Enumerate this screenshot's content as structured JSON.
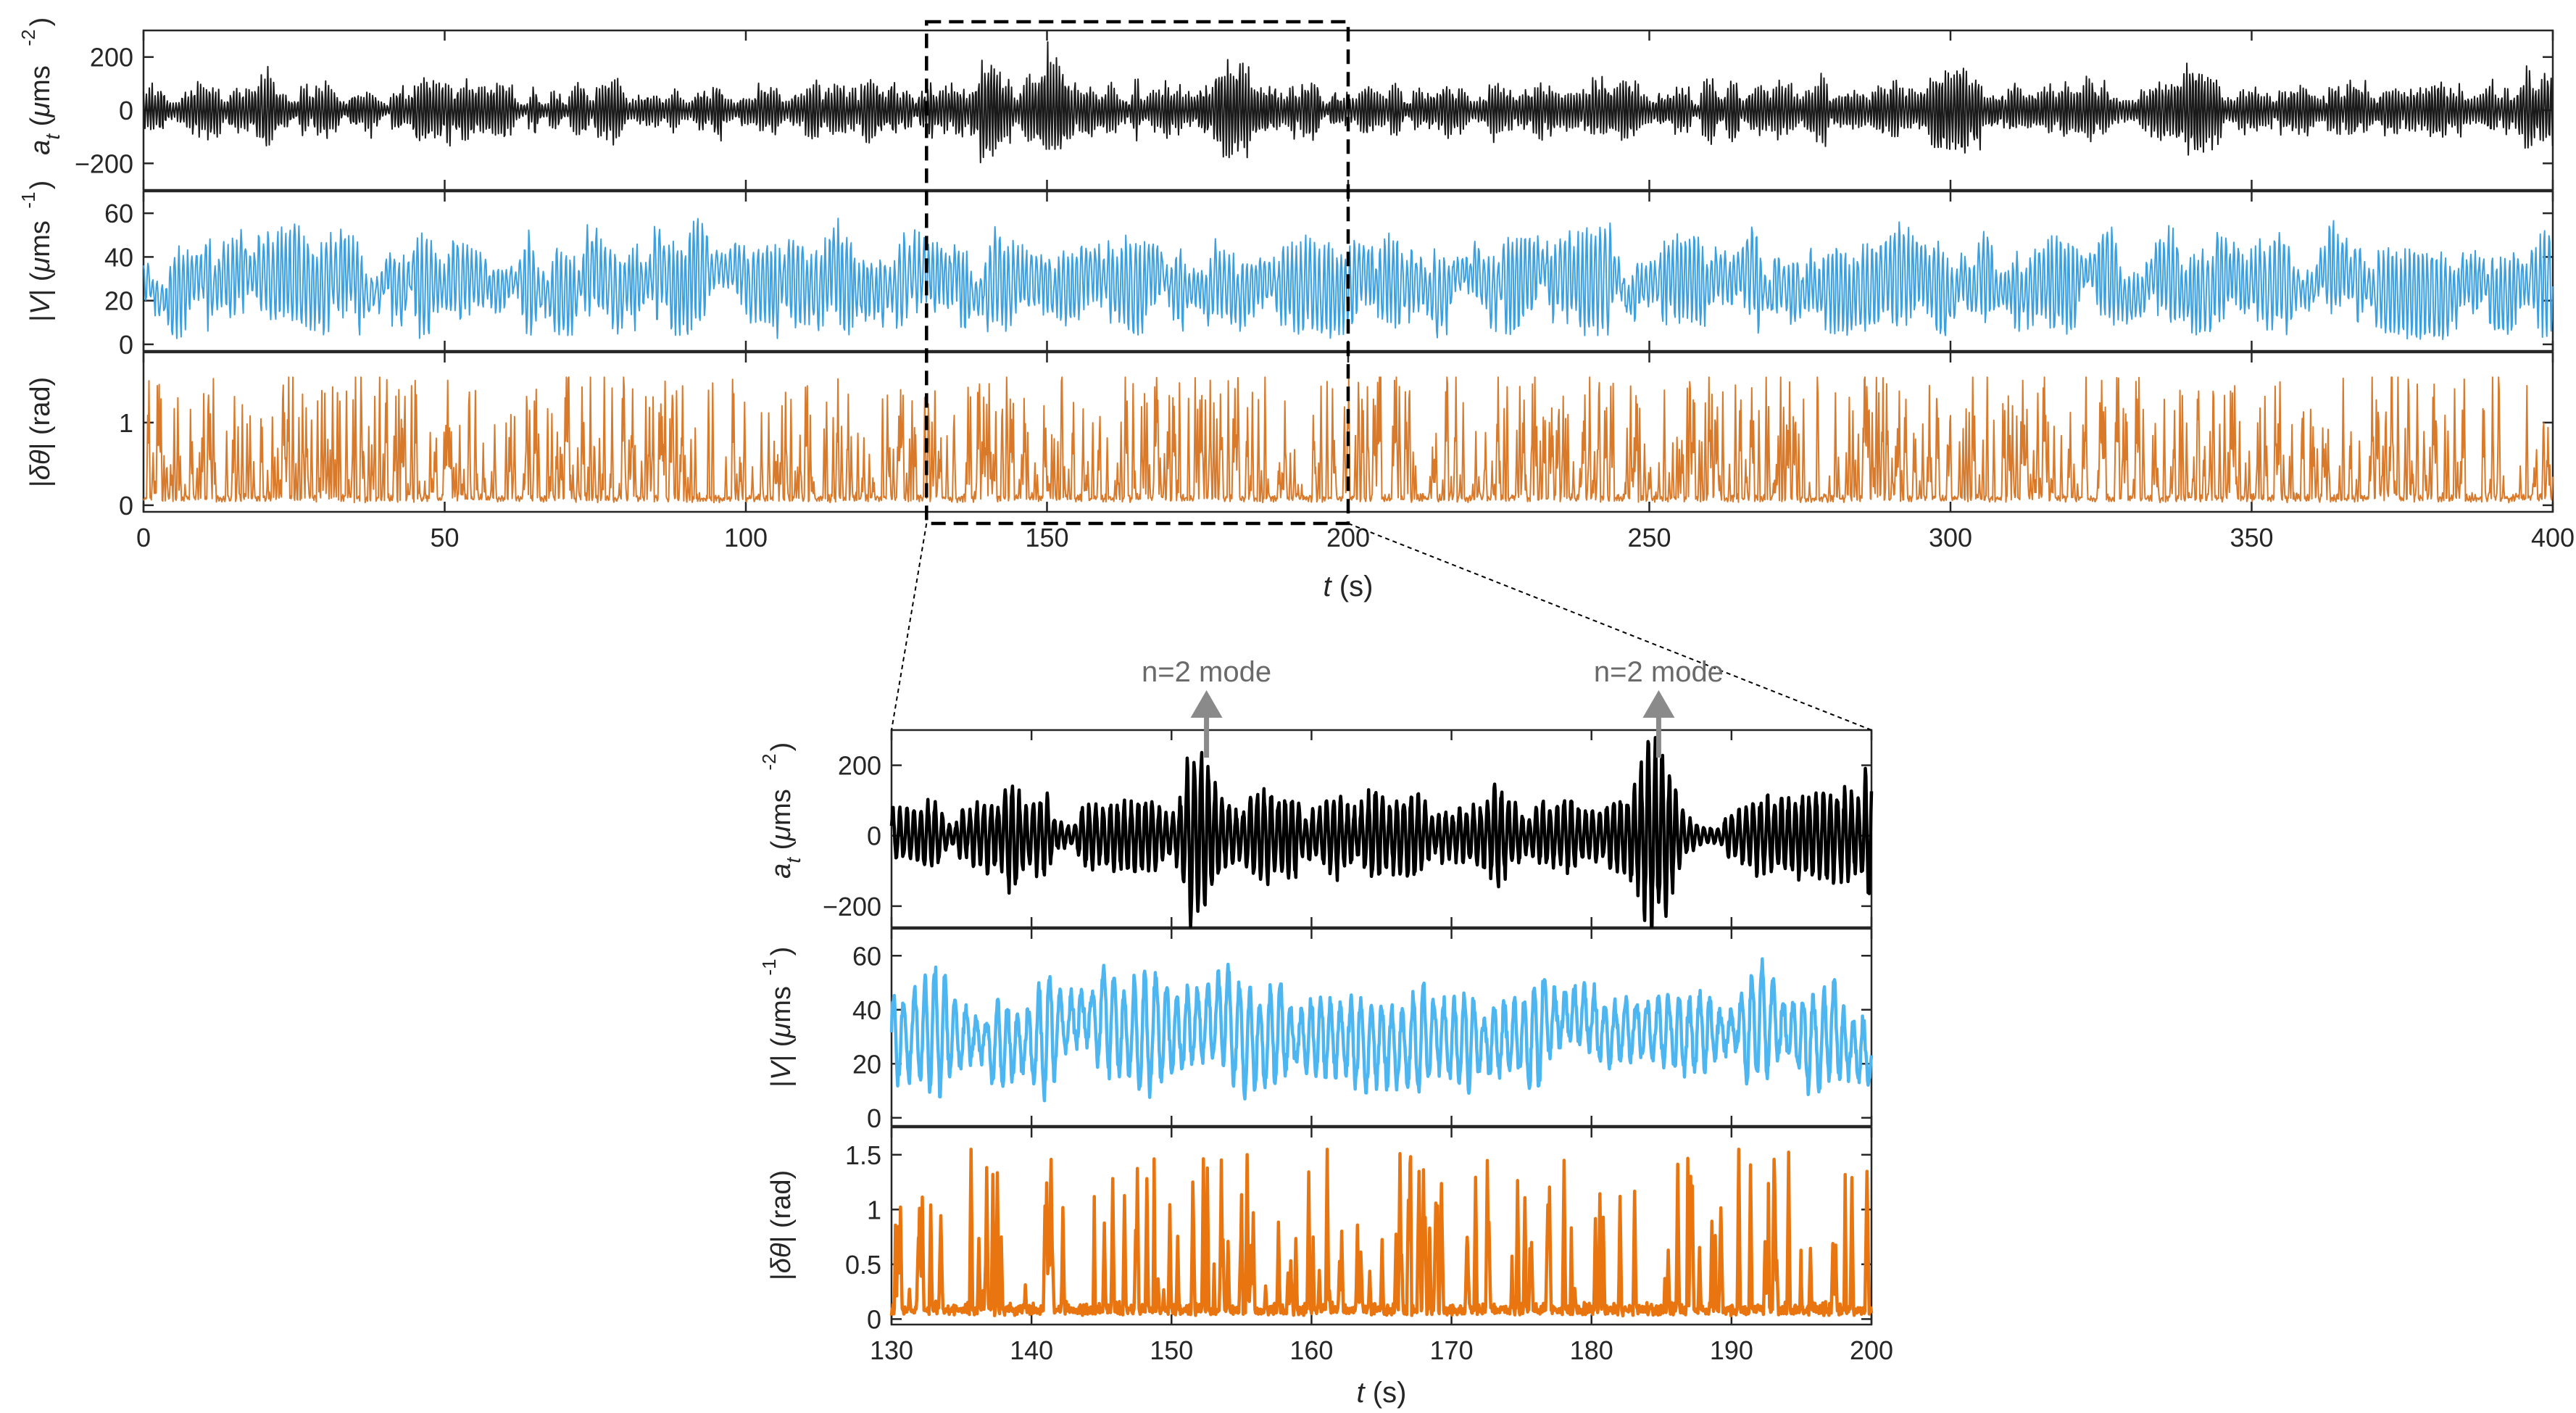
{
  "chart_data": [
    {
      "type": "line",
      "panel": "overview",
      "xlabel_italic": "t",
      "xlabel_rest": " (s)",
      "xlim": [
        0,
        400
      ],
      "xticks": [
        0,
        50,
        100,
        150,
        200,
        250,
        300,
        350,
        400
      ],
      "highlight_window": [
        130,
        200
      ],
      "series": [
        {
          "name": "a_t",
          "color": "#1a1a1a",
          "ylabel": "a_t (μms^-2)",
          "ylim": [
            -300,
            300
          ],
          "yticks": [
            -200,
            0,
            200
          ],
          "values": "dense oscillating signal, amplitude roughly ±100 with bursts to ±250 (about 4000 samples)"
        },
        {
          "name": "|V|",
          "color": "#3ca0e0",
          "ylabel": "|V| (μms^-1)",
          "ylim": [
            -3,
            70
          ],
          "yticks": [
            0,
            20,
            40,
            60
          ],
          "values": "noisy positive signal between about 2 and 60"
        },
        {
          "name": "|δθ|",
          "color": "#d97a2b",
          "ylabel": "|δθ| (rad)",
          "ylim": [
            -0.08,
            1.85
          ],
          "yticks": [
            0,
            1
          ],
          "values": "spiky positive signal, baseline near 0.05 with spikes up to about 1.55"
        }
      ]
    },
    {
      "type": "line",
      "panel": "zoom",
      "xlabel_italic": "t",
      "xlabel_rest": " (s)",
      "xlim": [
        130,
        200
      ],
      "xticks": [
        130,
        140,
        150,
        160,
        170,
        180,
        190,
        200
      ],
      "annotations": [
        {
          "text": "n=2 mode",
          "x": 152.5
        },
        {
          "text": "n=2 mode",
          "x": 184.8
        }
      ],
      "series": [
        {
          "name": "a_t",
          "color": "#000000",
          "ylabel": "a_t (μms^-2)",
          "ylim": [
            -260,
            300
          ],
          "yticks": [
            -200,
            0,
            200
          ],
          "values": "oscillating signal, amplitude about ±80 with n=2 mode bursts near t=152 and t=185 reaching about ±230"
        },
        {
          "name": "|V|",
          "color": "#4db6f0",
          "ylabel": "|V| (μms^-1)",
          "ylim": [
            -3,
            70
          ],
          "yticks": [
            0,
            20,
            40,
            60
          ],
          "values": "oscillating positive signal between about 5 and 62"
        },
        {
          "name": "|δθ|",
          "color": "#e8750f",
          "ylabel": "|δθ| (rad)",
          "ylim": [
            -0.05,
            1.75
          ],
          "yticks": [
            0,
            0.5,
            1,
            1.5
          ],
          "values": "spiky positive signal, baseline near 0.05 with spikes to about 1.55"
        }
      ]
    }
  ]
}
